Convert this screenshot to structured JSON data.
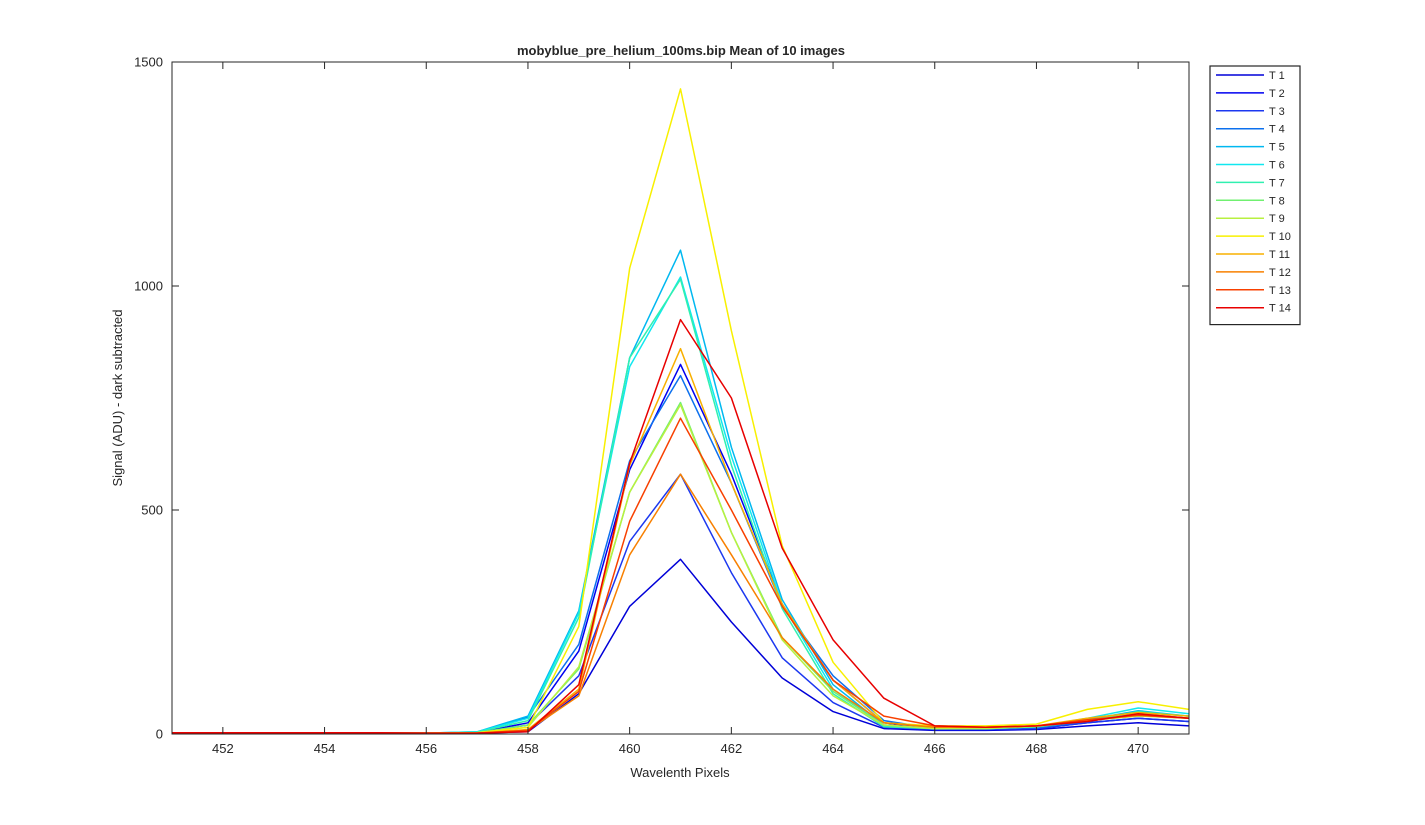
{
  "chart_data": {
    "type": "line",
    "title": "mobyblue_pre_helium_100ms.bip  Mean of 10 images",
    "xlabel": "Wavelenth Pixels",
    "ylabel": "Signal (ADU) - dark subtracted",
    "xlim": [
      451,
      471
    ],
    "ylim": [
      0,
      1500
    ],
    "xticks": [
      452,
      454,
      456,
      458,
      460,
      462,
      464,
      466,
      468,
      470
    ],
    "yticks": [
      0,
      500,
      1000,
      1500
    ],
    "grid": false,
    "legend_position": "outside-right-top",
    "x": [
      451,
      452,
      453,
      454,
      455,
      456,
      457,
      458,
      459,
      460,
      461,
      462,
      463,
      464,
      465,
      466,
      467,
      468,
      469,
      470,
      471
    ],
    "series": [
      {
        "name": "T 1",
        "color": "#0000d8",
        "values": [
          2,
          2,
          2,
          2,
          2,
          2,
          2,
          5,
          90,
          285,
          390,
          250,
          125,
          50,
          12,
          8,
          8,
          10,
          18,
          25,
          18
        ]
      },
      {
        "name": "T 2",
        "color": "#0000f0",
        "values": [
          2,
          2,
          2,
          2,
          2,
          2,
          3,
          25,
          185,
          590,
          825,
          580,
          290,
          120,
          25,
          10,
          10,
          12,
          25,
          35,
          28
        ]
      },
      {
        "name": "T 3",
        "color": "#1c38f0",
        "values": [
          2,
          2,
          2,
          2,
          2,
          2,
          3,
          20,
          130,
          430,
          580,
          360,
          170,
          70,
          15,
          10,
          10,
          12,
          25,
          35,
          28
        ]
      },
      {
        "name": "T 4",
        "color": "#0c70ee",
        "values": [
          2,
          2,
          2,
          2,
          2,
          2,
          4,
          38,
          200,
          610,
          800,
          560,
          285,
          130,
          30,
          12,
          12,
          14,
          28,
          45,
          35
        ]
      },
      {
        "name": "T 5",
        "color": "#00b8f0",
        "values": [
          2,
          2,
          2,
          2,
          2,
          2,
          5,
          40,
          275,
          840,
          1080,
          640,
          300,
          110,
          20,
          12,
          12,
          16,
          32,
          52,
          40
        ]
      },
      {
        "name": "T 6",
        "color": "#10e8f0",
        "values": [
          2,
          2,
          2,
          2,
          2,
          2,
          5,
          35,
          270,
          820,
          1020,
          620,
          290,
          100,
          18,
          12,
          12,
          16,
          35,
          58,
          45
        ]
      },
      {
        "name": "T 7",
        "color": "#30f0b0",
        "values": [
          2,
          2,
          2,
          2,
          2,
          2,
          4,
          30,
          260,
          840,
          1015,
          600,
          280,
          90,
          16,
          12,
          12,
          16,
          30,
          50,
          40
        ]
      },
      {
        "name": "T 8",
        "color": "#70f070",
        "values": [
          2,
          2,
          2,
          2,
          2,
          2,
          3,
          20,
          145,
          540,
          740,
          450,
          215,
          95,
          20,
          12,
          12,
          16,
          30,
          45,
          35
        ]
      },
      {
        "name": "T 9",
        "color": "#b8f040",
        "values": [
          2,
          2,
          2,
          2,
          2,
          2,
          3,
          15,
          150,
          540,
          735,
          450,
          210,
          85,
          20,
          12,
          12,
          18,
          30,
          40,
          35
        ]
      },
      {
        "name": "T 10",
        "color": "#f8f000",
        "values": [
          2,
          2,
          2,
          2,
          2,
          2,
          3,
          15,
          240,
          1040,
          1440,
          900,
          420,
          160,
          25,
          18,
          18,
          22,
          55,
          72,
          55
        ]
      },
      {
        "name": "T 11",
        "color": "#f8b000",
        "values": [
          2,
          2,
          2,
          2,
          2,
          2,
          2,
          10,
          100,
          600,
          860,
          560,
          290,
          120,
          25,
          15,
          15,
          18,
          35,
          48,
          40
        ]
      },
      {
        "name": "T 12",
        "color": "#f88000",
        "values": [
          2,
          2,
          2,
          2,
          2,
          2,
          2,
          8,
          85,
          400,
          580,
          400,
          215,
          100,
          25,
          15,
          15,
          18,
          30,
          42,
          35
        ]
      },
      {
        "name": "T 13",
        "color": "#f84000",
        "values": [
          2,
          2,
          2,
          2,
          2,
          2,
          2,
          8,
          95,
          475,
          705,
          500,
          285,
          120,
          40,
          18,
          15,
          18,
          32,
          42,
          35
        ]
      },
      {
        "name": "T 14",
        "color": "#e80000",
        "values": [
          3,
          3,
          3,
          3,
          3,
          2,
          2,
          5,
          110,
          605,
          925,
          750,
          415,
          210,
          80,
          18,
          15,
          18,
          28,
          45,
          35
        ]
      }
    ]
  }
}
